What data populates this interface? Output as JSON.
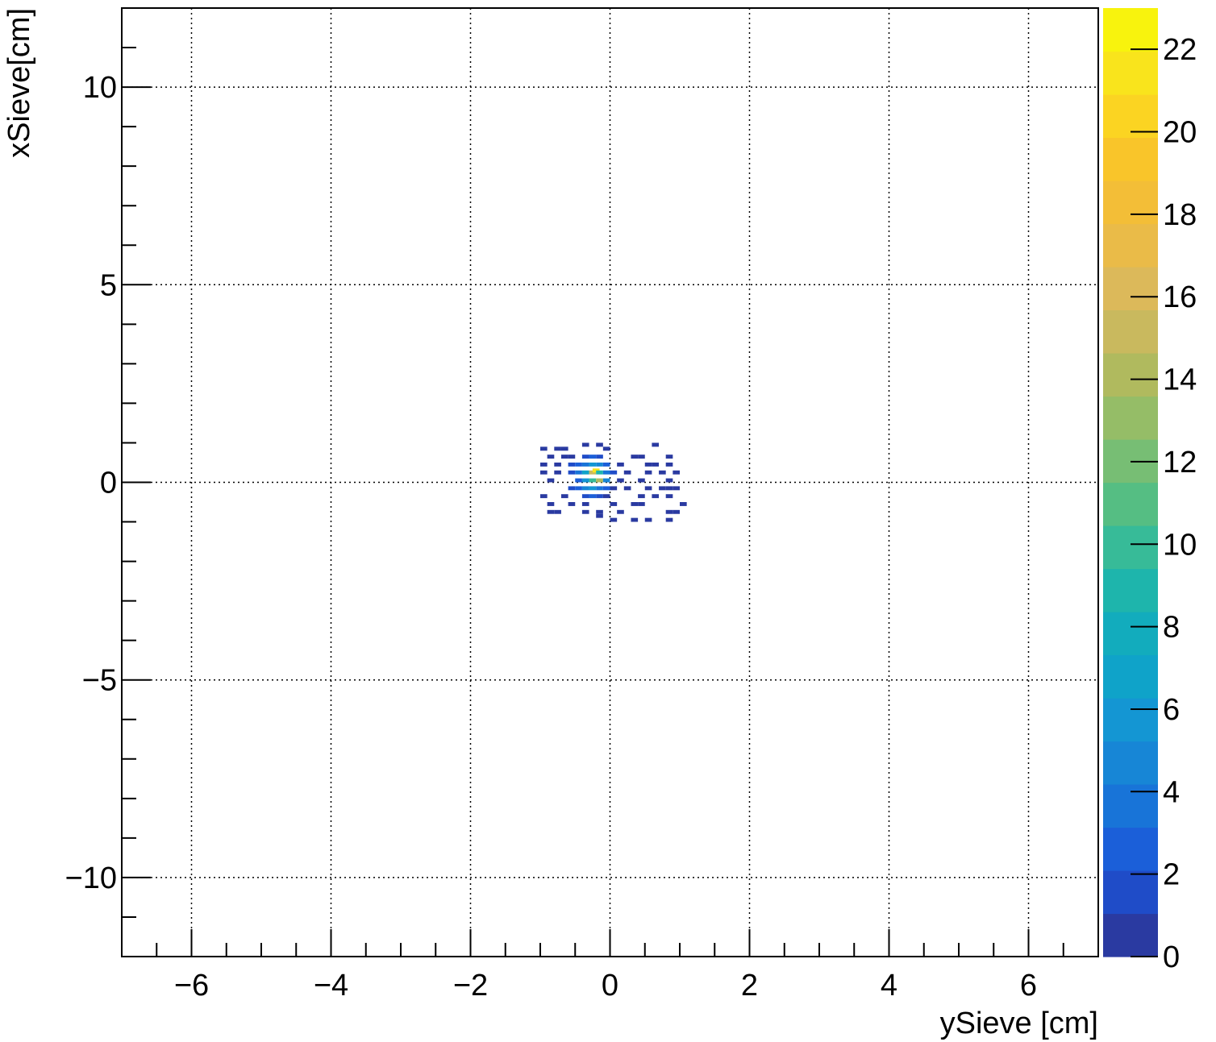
{
  "chart_data": {
    "type": "heatmap",
    "title": "",
    "xlabel": "ySieve [cm]",
    "ylabel": "xSieve[cm]",
    "xlim": [
      -7,
      7
    ],
    "ylim": [
      -12,
      12
    ],
    "grid": true,
    "x_ticks": [
      -6,
      -4,
      -2,
      0,
      2,
      4,
      6
    ],
    "x_tick_labels": [
      "−6",
      "−4",
      "−2",
      "0",
      "2",
      "4",
      "6"
    ],
    "y_ticks": [
      -10,
      -5,
      0,
      5,
      10
    ],
    "y_tick_labels": [
      "−10",
      "−5",
      "0",
      "5",
      "10"
    ],
    "colorbar": {
      "min": 0,
      "max": 23,
      "ticks": [
        0,
        2,
        4,
        6,
        8,
        10,
        12,
        14,
        16,
        18,
        20,
        22
      ],
      "tick_labels": [
        "0",
        "2",
        "4",
        "6",
        "8",
        "10",
        "12",
        "14",
        "16",
        "18",
        "20",
        "22"
      ],
      "colors": [
        "#2a3aa1",
        "#1f4cc8",
        "#1b5fd9",
        "#1874d8",
        "#1786d6",
        "#1496d3",
        "#0fa3c9",
        "#12acbd",
        "#1eb5ac",
        "#37bb98",
        "#55be83",
        "#77be74",
        "#95bd67",
        "#b0ba5e",
        "#c9b95e",
        "#dcb95a",
        "#eabb48",
        "#f3be37",
        "#f9c52a",
        "#fbd422",
        "#f9e41c",
        "#f8f30d"
      ]
    },
    "bin_size": [
      0.1,
      0.2
    ],
    "bins": [
      [
        -1.0,
        0.8,
        1
      ],
      [
        -0.8,
        0.8,
        1
      ],
      [
        -0.7,
        0.8,
        1
      ],
      [
        -0.4,
        0.9,
        1
      ],
      [
        -0.2,
        0.9,
        1
      ],
      [
        -0.1,
        0.8,
        1
      ],
      [
        0.6,
        0.9,
        1
      ],
      [
        -0.9,
        0.6,
        1
      ],
      [
        -0.7,
        0.6,
        1
      ],
      [
        -0.6,
        0.6,
        1
      ],
      [
        -0.4,
        0.6,
        2
      ],
      [
        -0.3,
        0.6,
        3
      ],
      [
        -0.2,
        0.6,
        2
      ],
      [
        0.3,
        0.6,
        1
      ],
      [
        0.4,
        0.6,
        1
      ],
      [
        0.8,
        0.6,
        1
      ],
      [
        -1.0,
        0.4,
        1
      ],
      [
        -0.8,
        0.4,
        1
      ],
      [
        -0.6,
        0.4,
        2
      ],
      [
        -0.5,
        0.4,
        3
      ],
      [
        -0.4,
        0.4,
        4
      ],
      [
        -0.3,
        0.4,
        6
      ],
      [
        -0.2,
        0.4,
        5
      ],
      [
        -0.1,
        0.4,
        3
      ],
      [
        0.1,
        0.4,
        1
      ],
      [
        0.5,
        0.4,
        1
      ],
      [
        0.6,
        0.4,
        1
      ],
      [
        0.8,
        0.4,
        1
      ],
      [
        -1.0,
        0.2,
        1
      ],
      [
        -0.8,
        0.2,
        1
      ],
      [
        -0.6,
        0.2,
        2
      ],
      [
        -0.5,
        0.2,
        4
      ],
      [
        -0.4,
        0.2,
        7
      ],
      [
        -0.3,
        0.2,
        15
      ],
      [
        -0.25,
        0.25,
        21
      ],
      [
        -0.2,
        0.2,
        9
      ],
      [
        -0.1,
        0.2,
        4
      ],
      [
        0.0,
        0.2,
        2
      ],
      [
        0.2,
        0.2,
        1
      ],
      [
        0.5,
        0.2,
        1
      ],
      [
        0.7,
        0.2,
        1
      ],
      [
        0.9,
        0.2,
        1
      ],
      [
        -0.9,
        0.0,
        1
      ],
      [
        -0.5,
        0.0,
        3
      ],
      [
        -0.4,
        0.0,
        6
      ],
      [
        -0.3,
        0.0,
        10
      ],
      [
        -0.2,
        0.0,
        14
      ],
      [
        -0.1,
        0.0,
        5
      ],
      [
        0.1,
        0.0,
        1
      ],
      [
        0.4,
        0.0,
        1
      ],
      [
        0.8,
        0.0,
        1
      ],
      [
        -0.6,
        -0.2,
        2
      ],
      [
        -0.5,
        -0.2,
        3
      ],
      [
        -0.4,
        -0.2,
        5
      ],
      [
        -0.3,
        -0.2,
        6
      ],
      [
        -0.2,
        -0.2,
        4
      ],
      [
        -0.1,
        -0.2,
        3
      ],
      [
        0.0,
        -0.2,
        1
      ],
      [
        0.2,
        -0.2,
        1
      ],
      [
        0.5,
        -0.2,
        1
      ],
      [
        0.7,
        -0.2,
        1
      ],
      [
        0.8,
        -0.2,
        1
      ],
      [
        0.9,
        -0.2,
        1
      ],
      [
        -1.0,
        -0.4,
        1
      ],
      [
        -0.7,
        -0.4,
        1
      ],
      [
        -0.4,
        -0.4,
        2
      ],
      [
        -0.3,
        -0.4,
        3
      ],
      [
        -0.2,
        -0.4,
        2
      ],
      [
        -0.1,
        -0.4,
        1
      ],
      [
        0.4,
        -0.4,
        1
      ],
      [
        0.6,
        -0.4,
        1
      ],
      [
        0.8,
        -0.4,
        1
      ],
      [
        -0.9,
        -0.6,
        1
      ],
      [
        -0.6,
        -0.6,
        1
      ],
      [
        -0.4,
        -0.6,
        1
      ],
      [
        0.0,
        -0.6,
        1
      ],
      [
        0.3,
        -0.6,
        1
      ],
      [
        0.4,
        -0.6,
        1
      ],
      [
        1.0,
        -0.6,
        1
      ],
      [
        -0.9,
        -0.8,
        1
      ],
      [
        -0.8,
        -0.8,
        1
      ],
      [
        -0.4,
        -0.8,
        1
      ],
      [
        -0.2,
        -0.8,
        1
      ],
      [
        0.1,
        -0.8,
        1
      ],
      [
        0.8,
        -0.8,
        1
      ],
      [
        0.9,
        -0.8,
        1
      ],
      [
        -0.2,
        -0.9,
        1
      ],
      [
        0.0,
        -1.0,
        1
      ],
      [
        0.3,
        -1.0,
        1
      ],
      [
        0.5,
        -1.0,
        1
      ],
      [
        0.8,
        -1.0,
        1
      ]
    ]
  }
}
